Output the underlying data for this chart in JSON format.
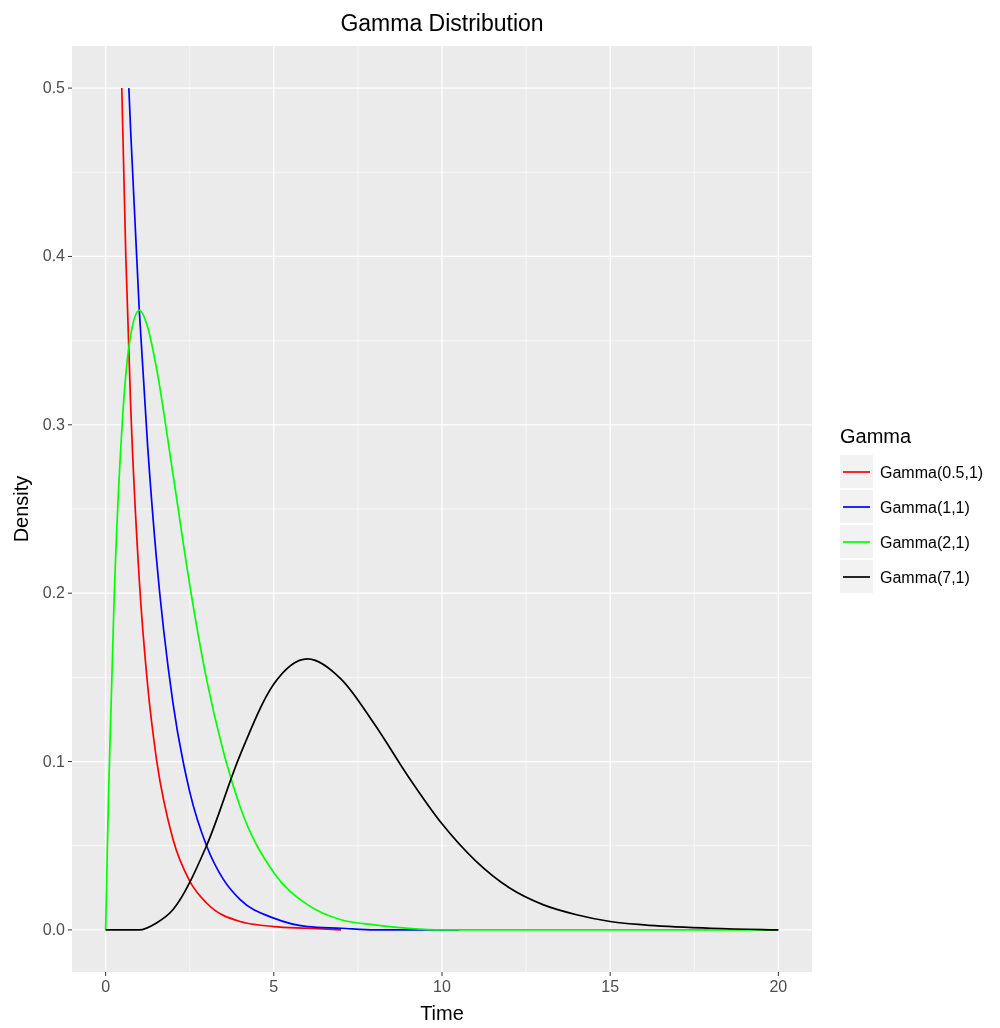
{
  "chart_data": {
    "type": "line",
    "title": "Gamma Distribution",
    "xlabel": "Time",
    "ylabel": "Density",
    "legend_title": "Gamma",
    "legend": "right",
    "grid": true,
    "line_style": "solid",
    "xlim": [
      -1,
      21
    ],
    "xticks": [
      0,
      5,
      10,
      15,
      20
    ],
    "ylim": [
      -0.025,
      0.525
    ],
    "yticks": [
      {
        "value": 0,
        "label": "0.0"
      },
      0.1,
      0.2,
      0.3,
      0.4,
      0.5
    ],
    "series": [
      {
        "name": "Gamma(0.5,1)",
        "color": "#ff0000",
        "x": [
          0.48,
          0.6,
          0.75,
          1,
          1.25,
          1.5,
          2,
          2.5,
          3,
          4,
          5,
          6,
          7
        ],
        "values": [
          0.5,
          0.4,
          0.308,
          0.208,
          0.145,
          0.103,
          0.054,
          0.029,
          0.016,
          0.005,
          0.002,
          0.001,
          0
        ]
      },
      {
        "name": "Gamma(1,1)",
        "color": "#0000ff",
        "x": [
          0.69,
          0.75,
          1,
          1.25,
          1.5,
          2,
          2.5,
          3,
          3.5,
          4,
          5,
          6,
          7,
          8,
          10.5
        ],
        "values": [
          0.5,
          0.472,
          0.368,
          0.287,
          0.223,
          0.135,
          0.082,
          0.05,
          0.03,
          0.018,
          0.007,
          0.002,
          0.001,
          0,
          0
        ]
      },
      {
        "name": "Gamma(2,1)",
        "color": "#00ff00",
        "x": [
          0,
          0.05,
          0.1,
          0.25,
          0.5,
          0.75,
          1,
          1.25,
          1.5,
          2,
          2.5,
          3,
          3.5,
          4,
          5,
          6,
          7,
          8,
          10,
          12,
          20
        ],
        "values": [
          0,
          0.048,
          0.09,
          0.195,
          0.303,
          0.354,
          0.368,
          0.358,
          0.335,
          0.271,
          0.205,
          0.149,
          0.106,
          0.073,
          0.034,
          0.015,
          0.006,
          0.003,
          0,
          0,
          0
        ]
      },
      {
        "name": "Gamma(7,1)",
        "color": "#000000",
        "x": [
          0,
          1,
          1.5,
          2,
          3,
          4,
          5,
          6,
          7,
          8,
          9,
          10,
          11,
          12,
          13,
          14,
          15,
          16,
          18,
          20
        ],
        "values": [
          0,
          0,
          0.004,
          0.012,
          0.05,
          0.104,
          0.146,
          0.161,
          0.149,
          0.122,
          0.091,
          0.063,
          0.041,
          0.025,
          0.015,
          0.009,
          0.005,
          0.003,
          0.001,
          0
        ]
      }
    ]
  }
}
